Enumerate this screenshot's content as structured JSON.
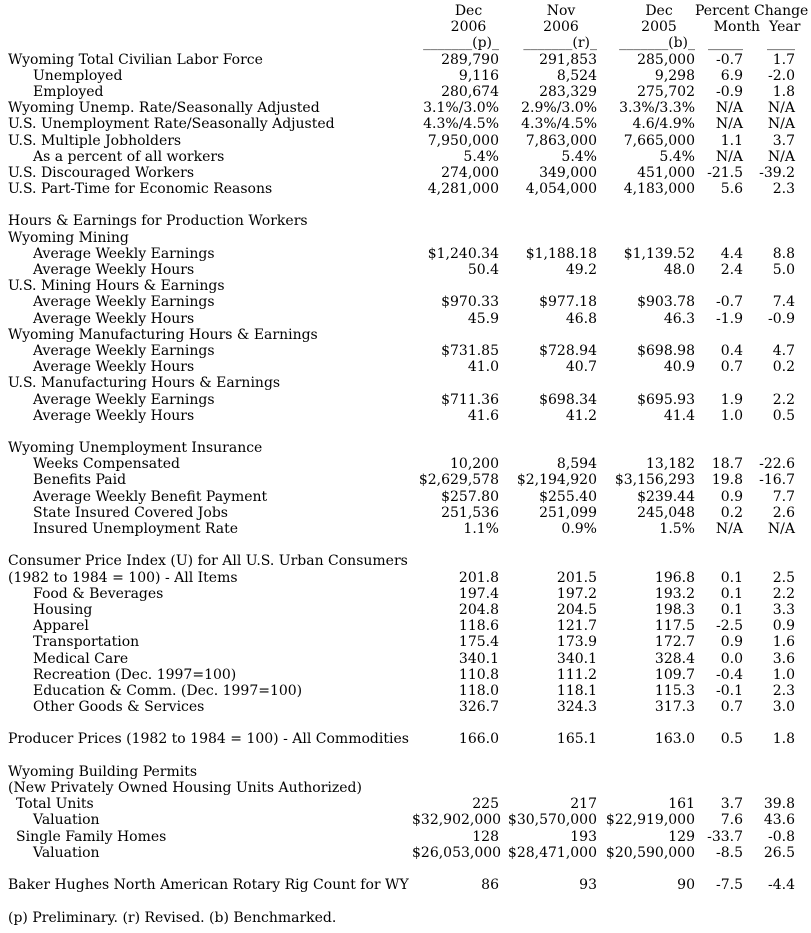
{
  "colors": {
    "background": "#ffffff",
    "text": "#000000"
  },
  "header": {
    "columns": [
      {
        "line1": "Dec",
        "line2": "2006",
        "underline": "_______(p)_"
      },
      {
        "line1": "Nov",
        "line2": "2006",
        "underline": "_______(r)_"
      },
      {
        "line1": "Dec",
        "line2": "2005",
        "underline": "_______(b)_"
      }
    ],
    "change": {
      "title": "Percent Change",
      "month": "Month",
      "year": "Year",
      "month_underline": "_____",
      "year_underline": "____"
    }
  },
  "table": {
    "rows": [
      {
        "label": "Wyoming Total Civilian Labor Force",
        "indent": 0,
        "values": [
          "289,790",
          "291,853",
          "285,000",
          "-0.7",
          "1.7"
        ]
      },
      {
        "label": "Unemployed",
        "indent": 2,
        "values": [
          "9,116",
          "8,524",
          "9,298",
          "6.9",
          "-2.0"
        ]
      },
      {
        "label": "Employed",
        "indent": 2,
        "values": [
          "280,674",
          "283,329",
          "275,702",
          "-0.9",
          "1.8"
        ]
      },
      {
        "label": "Wyoming Unemp. Rate/Seasonally Adjusted",
        "indent": 0,
        "values": [
          "3.1%/3.0%",
          "2.9%/3.0%",
          "3.3%/3.3%",
          "N/A",
          "N/A"
        ]
      },
      {
        "label": "U.S. Unemployment Rate/Seasonally Adjusted",
        "indent": 0,
        "values": [
          "4.3%/4.5%",
          "4.3%/4.5%",
          "4.6/4.9%",
          "N/A",
          "N/A"
        ]
      },
      {
        "label": "U.S. Multiple Jobholders",
        "indent": 0,
        "values": [
          "7,950,000",
          "7,863,000",
          "7,665,000",
          "1.1",
          "3.7"
        ]
      },
      {
        "label": "As a percent of all workers",
        "indent": 2,
        "values": [
          "5.4%",
          "5.4%",
          "5.4%",
          "N/A",
          "N/A"
        ]
      },
      {
        "label": "U.S. Discouraged Workers",
        "indent": 0,
        "values": [
          "274,000",
          "349,000",
          "451,000",
          "-21.5",
          "-39.2"
        ]
      },
      {
        "label": "U.S. Part-Time for Economic Reasons",
        "indent": 0,
        "values": [
          "4,281,000",
          "4,054,000",
          "4,183,000",
          "5.6",
          "2.3"
        ]
      },
      {
        "type": "blank"
      },
      {
        "label": "Hours & Earnings for Production Workers",
        "indent": 0
      },
      {
        "label": "Wyoming Mining",
        "indent": 0
      },
      {
        "label": "Average Weekly Earnings",
        "indent": 2,
        "values": [
          "$1,240.34",
          "$1,188.18",
          "$1,139.52",
          "4.4",
          "8.8"
        ]
      },
      {
        "label": "Average Weekly Hours",
        "indent": 2,
        "values": [
          "50.4",
          "49.2",
          "48.0",
          "2.4",
          "5.0"
        ]
      },
      {
        "label": "U.S. Mining Hours & Earnings",
        "indent": 0
      },
      {
        "label": "Average Weekly Earnings",
        "indent": 2,
        "values": [
          "$970.33",
          "$977.18",
          "$903.78",
          "-0.7",
          "7.4"
        ]
      },
      {
        "label": "Average Weekly Hours",
        "indent": 2,
        "values": [
          "45.9",
          "46.8",
          "46.3",
          "-1.9",
          "-0.9"
        ]
      },
      {
        "label": "Wyoming Manufacturing Hours & Earnings",
        "indent": 0
      },
      {
        "label": "Average Weekly Earnings",
        "indent": 2,
        "values": [
          "$731.85",
          "$728.94",
          "$698.98",
          "0.4",
          "4.7"
        ]
      },
      {
        "label": "Average Weekly Hours",
        "indent": 2,
        "values": [
          "41.0",
          "40.7",
          "40.9",
          "0.7",
          "0.2"
        ]
      },
      {
        "label": "U.S. Manufacturing Hours & Earnings",
        "indent": 0
      },
      {
        "label": "Average Weekly Earnings",
        "indent": 2,
        "values": [
          "$711.36",
          "$698.34",
          "$695.93",
          "1.9",
          "2.2"
        ]
      },
      {
        "label": "Average Weekly Hours",
        "indent": 2,
        "values": [
          "41.6",
          "41.2",
          "41.4",
          "1.0",
          "0.5"
        ]
      },
      {
        "type": "blank"
      },
      {
        "label": "Wyoming Unemployment Insurance",
        "indent": 0
      },
      {
        "label": "Weeks Compensated",
        "indent": 2,
        "values": [
          "10,200",
          "8,594",
          "13,182",
          "18.7",
          "-22.6"
        ]
      },
      {
        "label": "Benefits Paid",
        "indent": 2,
        "values": [
          "$2,629,578",
          "$2,194,920",
          "$3,156,293",
          "19.8",
          "-16.7"
        ]
      },
      {
        "label": "Average Weekly Benefit Payment",
        "indent": 2,
        "values": [
          "$257.80",
          "$255.40",
          "$239.44",
          "0.9",
          "7.7"
        ]
      },
      {
        "label": "State Insured Covered Jobs",
        "indent": 2,
        "values": [
          "251,536",
          "251,099",
          "245,048",
          "0.2",
          "2.6"
        ]
      },
      {
        "label": "Insured Unemployment Rate",
        "indent": 2,
        "values": [
          "1.1%",
          "0.9%",
          "1.5%",
          "N/A",
          "N/A"
        ]
      },
      {
        "type": "blank"
      },
      {
        "label": "Consumer Price Index (U) for All U.S. Urban Consumers",
        "indent": 0
      },
      {
        "label": "(1982 to 1984 = 100) - All Items",
        "indent": 0,
        "values": [
          "201.8",
          "201.5",
          "196.8",
          "0.1",
          "2.5"
        ]
      },
      {
        "label": "Food & Beverages",
        "indent": 2,
        "values": [
          "197.4",
          "197.2",
          "193.2",
          "0.1",
          "2.2"
        ]
      },
      {
        "label": "Housing",
        "indent": 2,
        "values": [
          "204.8",
          "204.5",
          "198.3",
          "0.1",
          "3.3"
        ]
      },
      {
        "label": "Apparel",
        "indent": 2,
        "values": [
          "118.6",
          "121.7",
          "117.5",
          "-2.5",
          "0.9"
        ]
      },
      {
        "label": "Transportation",
        "indent": 2,
        "values": [
          "175.4",
          "173.9",
          "172.7",
          "0.9",
          "1.6"
        ]
      },
      {
        "label": "Medical Care",
        "indent": 2,
        "values": [
          "340.1",
          "340.1",
          "328.4",
          "0.0",
          "3.6"
        ]
      },
      {
        "label": "Recreation (Dec. 1997=100)",
        "indent": 2,
        "values": [
          "110.8",
          "111.2",
          "109.7",
          "-0.4",
          "1.0"
        ]
      },
      {
        "label": "Education & Comm. (Dec. 1997=100)",
        "indent": 2,
        "values": [
          "118.0",
          "118.1",
          "115.3",
          "-0.1",
          "2.3"
        ]
      },
      {
        "label": "Other Goods & Services",
        "indent": 2,
        "values": [
          "326.7",
          "324.3",
          "317.3",
          "0.7",
          "3.0"
        ]
      },
      {
        "type": "blank"
      },
      {
        "label": "Producer Prices (1982 to 1984 = 100) - All Commodities",
        "indent": 0,
        "values": [
          "166.0",
          "165.1",
          "163.0",
          "0.5",
          "1.8"
        ]
      },
      {
        "type": "blank"
      },
      {
        "label": "Wyoming Building Permits",
        "indent": 0
      },
      {
        "label": "(New Privately Owned Housing Units Authorized)",
        "indent": 0
      },
      {
        "label": "Total Units",
        "indent": 1,
        "values": [
          "225",
          "217",
          "161",
          "3.7",
          "39.8"
        ]
      },
      {
        "label": "Valuation",
        "indent": 2,
        "values": [
          "$32,902,000",
          "$30,570,000",
          "$22,919,000",
          "7.6",
          "43.6"
        ]
      },
      {
        "label": "Single Family Homes",
        "indent": 1,
        "values": [
          "128",
          "193",
          "129",
          "-33.7",
          "-0.8"
        ]
      },
      {
        "label": "Valuation",
        "indent": 2,
        "values": [
          "$26,053,000",
          "$28,471,000",
          "$20,590,000",
          "-8.5",
          "26.5"
        ]
      },
      {
        "type": "blank"
      },
      {
        "label": "Baker Hughes North American Rotary Rig Count for WY",
        "indent": 0,
        "values": [
          "86",
          "93",
          "90",
          "-7.5",
          "-4.4"
        ]
      }
    ]
  },
  "footnote": "(p) Preliminary. (r) Revised. (b) Benchmarked."
}
